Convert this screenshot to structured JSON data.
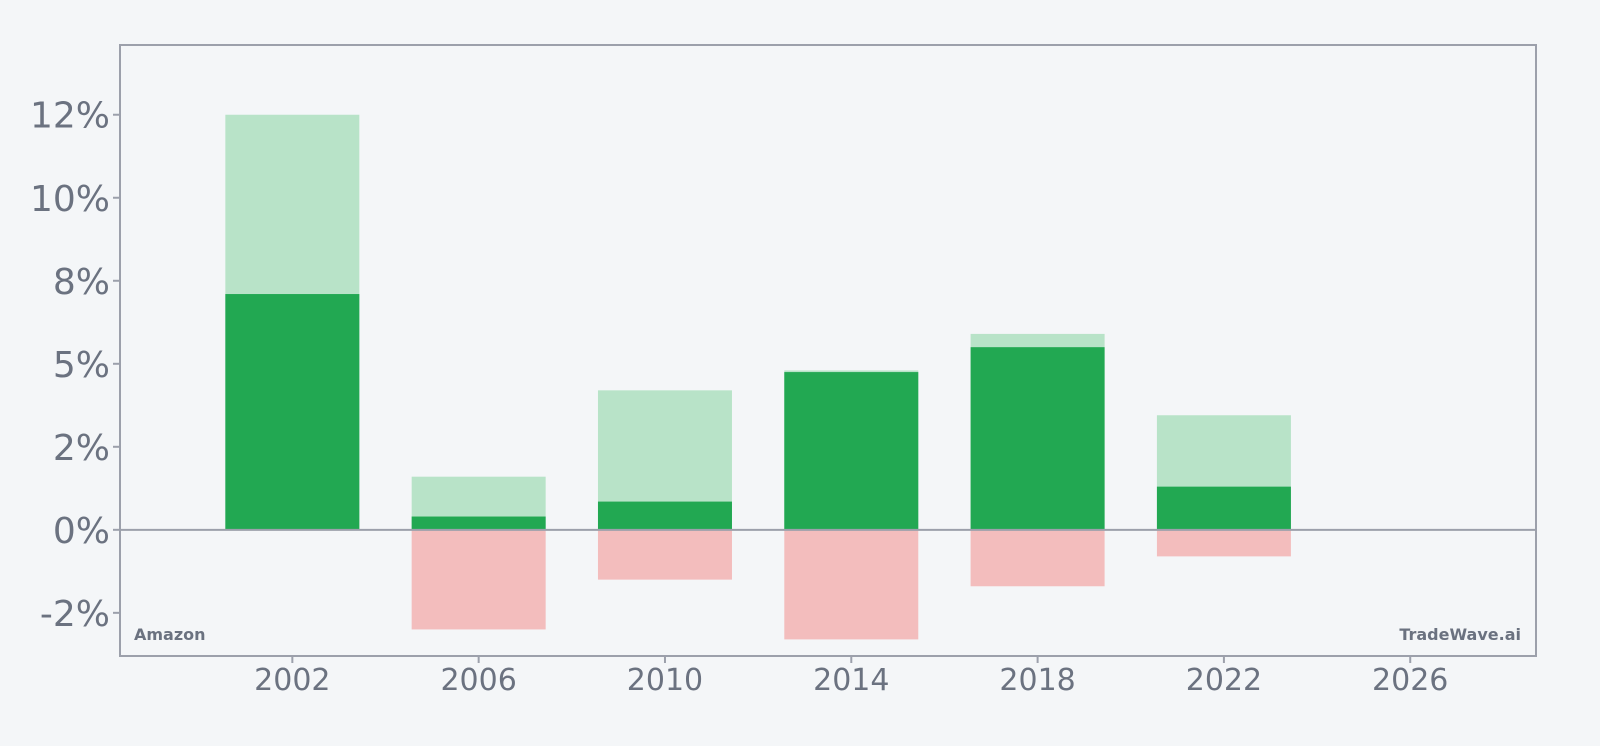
{
  "chart_data": {
    "type": "bar",
    "stacked_overlay": true,
    "x": [
      2002,
      2006,
      2010,
      2014,
      2018,
      2022
    ],
    "series": [
      {
        "values": [
          7.1,
          0.4,
          0.85,
          4.75,
          5.5,
          1.3
        ]
      },
      {
        "values": [
          12.5,
          1.6,
          4.2,
          4.8,
          5.9,
          3.45
        ]
      },
      {
        "values": [
          0,
          -3.0,
          -1.5,
          -3.3,
          -1.7,
          -0.8
        ]
      }
    ],
    "xticks": [
      "2002",
      "2006",
      "2010",
      "2014",
      "2018",
      "2022",
      "2026"
    ],
    "yticks": [
      "12%",
      "10%",
      "8%",
      "5%",
      "2%",
      "0%",
      "-2%"
    ],
    "ylim": [
      -3.8,
      14.6
    ],
    "xlim": [
      1998.3,
      2028.7
    ],
    "grid": false,
    "legend": "none",
    "colors": {
      "positive_dark": "#22a852",
      "positive_light": "#b8e3c8",
      "negative_light": "#f3bdbd",
      "axis": "#9ca0ab",
      "text": "#6b7280",
      "background": "#f4f6f8"
    }
  },
  "labels": {
    "corner_left": "Amazon",
    "corner_right": "TradeWave.ai"
  }
}
